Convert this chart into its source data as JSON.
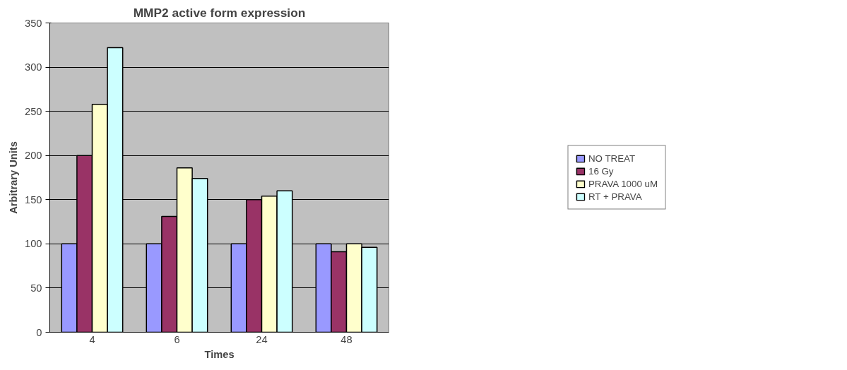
{
  "chart_data": {
    "type": "bar",
    "title": "MMP2 active form expression",
    "xlabel": "Times",
    "ylabel": "Arbitrary Units",
    "categories": [
      "4",
      "6",
      "24",
      "48"
    ],
    "series": [
      {
        "name": "NO TREAT",
        "color": "#9999ff",
        "values": [
          100,
          100,
          100,
          100
        ]
      },
      {
        "name": "16 Gy",
        "color": "#993366",
        "values": [
          200,
          131,
          150,
          91
        ]
      },
      {
        "name": "PRAVA 1000 uM",
        "color": "#ffffcc",
        "values": [
          258,
          186,
          154,
          100
        ]
      },
      {
        "name": "RT + PRAVA",
        "color": "#ccffff",
        "values": [
          322,
          174,
          160,
          96
        ]
      }
    ],
    "ylim": [
      0,
      350
    ],
    "yticks": [
      0,
      50,
      100,
      150,
      200,
      250,
      300,
      350
    ],
    "grid": "y",
    "legend": "right"
  }
}
